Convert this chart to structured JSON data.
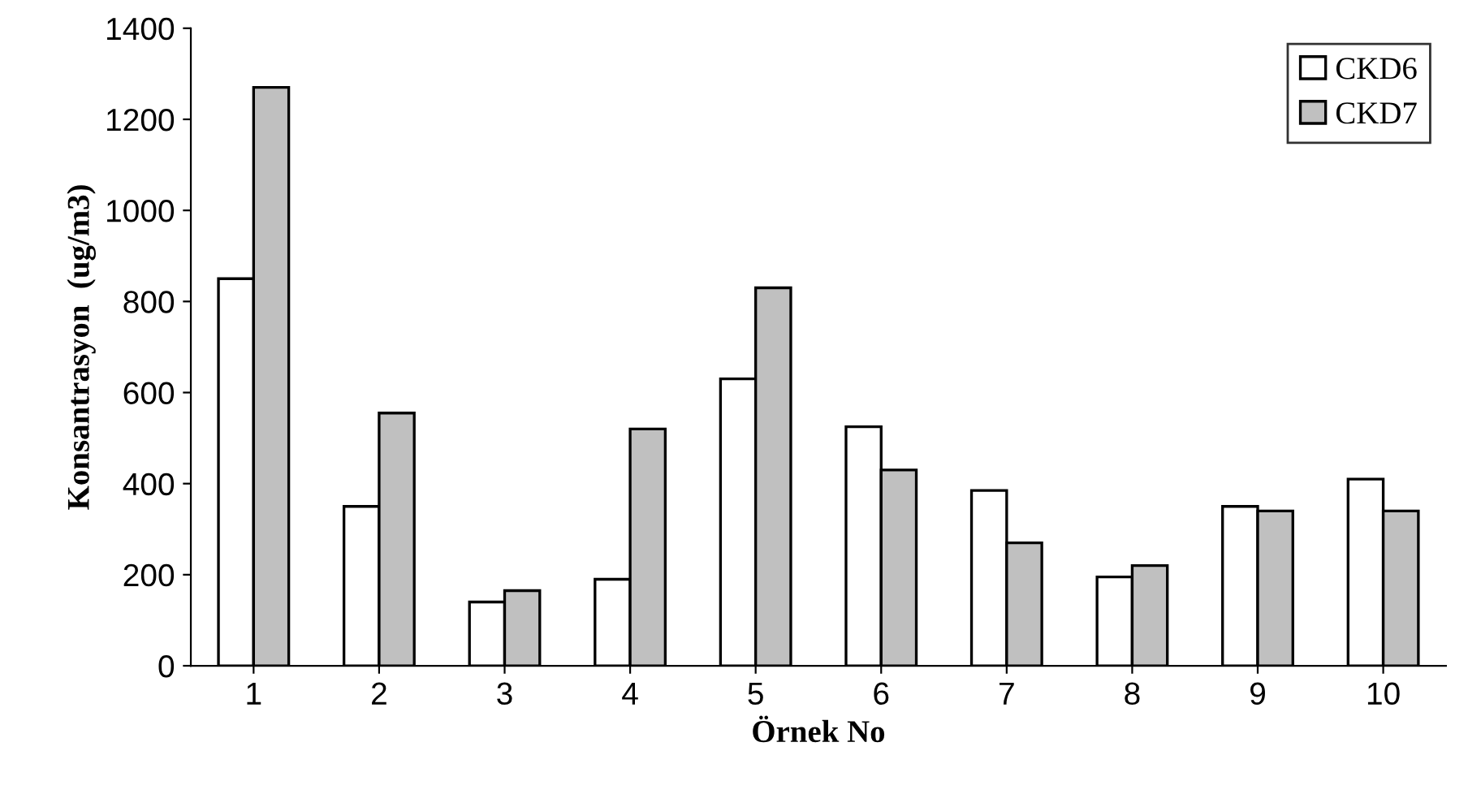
{
  "chart_data": {
    "type": "bar",
    "categories": [
      "1",
      "2",
      "3",
      "4",
      "5",
      "6",
      "7",
      "8",
      "9",
      "10"
    ],
    "series": [
      {
        "name": "CKD6",
        "color": "#ffffff",
        "values": [
          850,
          350,
          140,
          190,
          630,
          525,
          385,
          195,
          350,
          410
        ]
      },
      {
        "name": "CKD7",
        "color": "#c0c0c0",
        "values": [
          1270,
          555,
          165,
          520,
          830,
          430,
          270,
          220,
          340,
          340
        ]
      }
    ],
    "xlabel": "Örnek No",
    "ylabel": "Konsantrasyon  (ug/m3)",
    "ylim": [
      0,
      1400
    ],
    "yticks": [
      0,
      200,
      400,
      600,
      800,
      1000,
      1200,
      1400
    ],
    "grid": false,
    "legend": "top right"
  }
}
